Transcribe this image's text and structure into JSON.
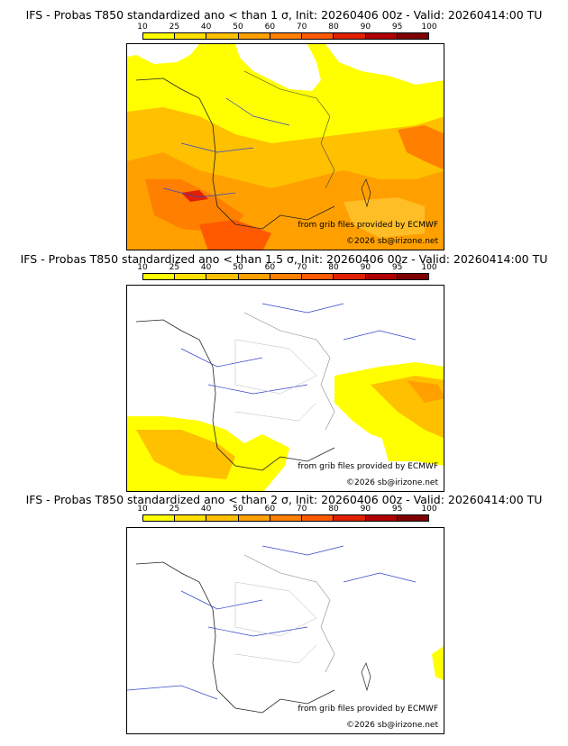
{
  "legend": {
    "ticks": [
      "10",
      "25",
      "40",
      "50",
      "60",
      "70",
      "80",
      "90",
      "95",
      "100"
    ],
    "colors": [
      "#ffff00",
      "#ffe000",
      "#ffc000",
      "#ffa000",
      "#ff8000",
      "#ff5a00",
      "#e02000",
      "#b00000",
      "#800000",
      "#500000"
    ]
  },
  "panels": [
    {
      "title": "IFS - Probas T850  standardized ano < than 1 σ, Init: 20260406 00z - Valid: 20260414:00 TU",
      "credit_grib": "from grib files provided by ECMWF",
      "credit_site": "©2026 sb@irizone.net"
    },
    {
      "title": "IFS - Probas T850  standardized ano < than 1.5 σ, Init: 20260406 00z - Valid: 20260414:00 TU",
      "credit_grib": "from grib files provided by ECMWF",
      "credit_site": "©2026 sb@irizone.net"
    },
    {
      "title": "IFS - Probas T850  standardized ano < than 2 σ, Init: 20260406 00z - Valid: 20260414:00 TU",
      "credit_grib": "from grib files provided by ECMWF",
      "credit_site": "©2026 sb@irizone.net"
    }
  ]
}
